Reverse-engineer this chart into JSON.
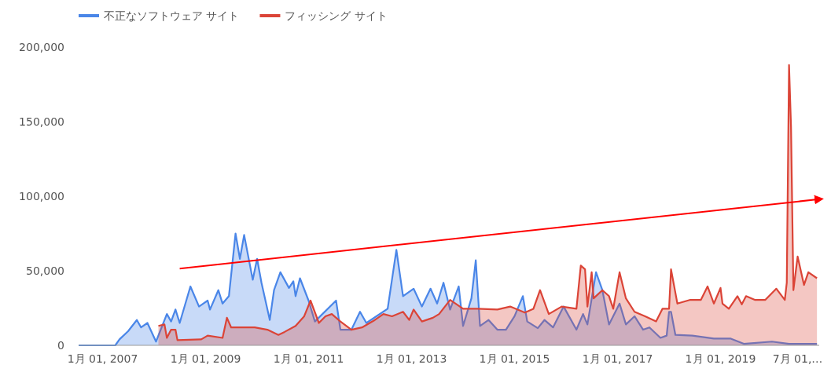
{
  "chart_data": {
    "type": "area",
    "legend": "top left",
    "grid": false,
    "xlim": [
      "2006-07-15",
      "2020-12-01"
    ],
    "xticks": [
      {
        "value": "2007-01-01",
        "label": "1月 01, 2007"
      },
      {
        "value": "2009-01-01",
        "label": "1月 01, 2009"
      },
      {
        "value": "2011-01-01",
        "label": "1月 01, 2011"
      },
      {
        "value": "2013-01-01",
        "label": "1月 01, 2013"
      },
      {
        "value": "2015-01-01",
        "label": "1月 01, 2015"
      },
      {
        "value": "2017-01-01",
        "label": "1月 01, 2017"
      },
      {
        "value": "2019-01-01",
        "label": "1月 01, 2019"
      },
      {
        "value": "2020-07-01",
        "label": "7月 01,…"
      }
    ],
    "ylim": [
      0,
      200000
    ],
    "yticks": [
      {
        "value": 0,
        "label": "0"
      },
      {
        "value": 50000,
        "label": "50,000"
      },
      {
        "value": 100000,
        "label": "100,000"
      },
      {
        "value": 150000,
        "label": "150,000"
      },
      {
        "value": 200000,
        "label": "200,000"
      }
    ],
    "series": [
      {
        "name": "不正なソフトウェア サイト",
        "color": "#4a86e8",
        "x": [
          "2006-07-15",
          "2007-04-01",
          "2007-05-01",
          "2007-07-01",
          "2007-09-01",
          "2007-10-01",
          "2007-11-15",
          "2008-01-15",
          "2008-04-01",
          "2008-05-01",
          "2008-06-01",
          "2008-07-01",
          "2008-09-15",
          "2008-11-15",
          "2009-01-15",
          "2009-02-01",
          "2009-04-01",
          "2009-05-01",
          "2009-06-15",
          "2009-08-01",
          "2009-09-01",
          "2009-10-01",
          "2009-12-01",
          "2010-01-01",
          "2010-02-01",
          "2010-04-01",
          "2010-05-01",
          "2010-06-15",
          "2010-08-15",
          "2010-09-15",
          "2010-10-01",
          "2010-11-01",
          "2011-01-01",
          "2011-02-15",
          "2011-07-15",
          "2011-08-15",
          "2011-11-01",
          "2012-01-01",
          "2012-02-15",
          "2012-07-15",
          "2012-09-15",
          "2012-11-01",
          "2013-01-15",
          "2013-03-15",
          "2013-05-15",
          "2013-07-01",
          "2013-08-15",
          "2013-10-01",
          "2013-12-01",
          "2014-01-01",
          "2014-03-01",
          "2014-04-01",
          "2014-05-01",
          "2014-07-01",
          "2014-09-01",
          "2014-11-01",
          "2015-01-01",
          "2015-03-01",
          "2015-04-01",
          "2015-06-15",
          "2015-08-01",
          "2015-10-01",
          "2015-12-15",
          "2016-03-15",
          "2016-05-01",
          "2016-06-01",
          "2016-08-01",
          "2016-09-15",
          "2016-11-01",
          "2017-01-15",
          "2017-03-01",
          "2017-05-01",
          "2017-07-01",
          "2017-08-15",
          "2017-11-01",
          "2017-12-15",
          "2018-01-01",
          "2018-01-15",
          "2018-02-15",
          "2018-06-15",
          "2018-11-15",
          "2019-03-15",
          "2019-06-15",
          "2020-01-01",
          "2020-05-01",
          "2020-11-15"
        ],
        "values": [
          0,
          0,
          4000,
          9500,
          17000,
          12000,
          15000,
          2500,
          21000,
          16000,
          24000,
          15000,
          39500,
          26000,
          30000,
          24000,
          37000,
          28000,
          33000,
          75000,
          58000,
          74000,
          44000,
          58000,
          42000,
          17000,
          37000,
          49000,
          38500,
          43000,
          33000,
          45000,
          30000,
          16000,
          30000,
          10500,
          10500,
          22500,
          15000,
          24500,
          64000,
          33000,
          38000,
          26000,
          38000,
          28000,
          42000,
          24000,
          39500,
          13000,
          31500,
          57000,
          13000,
          17000,
          10500,
          10500,
          19500,
          33000,
          16000,
          11500,
          17000,
          12000,
          26000,
          10500,
          21000,
          14000,
          49000,
          37000,
          14000,
          28000,
          14000,
          19500,
          10500,
          12000,
          5000,
          6500,
          22500,
          22500,
          7000,
          6500,
          4500,
          4500,
          1000,
          2500,
          1000,
          1000
        ]
      },
      {
        "name": "フィッシング サイト",
        "color": "#db4437",
        "x": [
          "2008-02-01",
          "2008-03-15",
          "2008-04-01",
          "2008-05-01",
          "2008-06-01",
          "2008-06-15",
          "2008-12-01",
          "2009-01-15",
          "2009-05-01",
          "2009-06-01",
          "2009-07-01",
          "2009-12-15",
          "2010-03-15",
          "2010-06-01",
          "2010-07-15",
          "2010-10-01",
          "2010-12-01",
          "2011-01-15",
          "2011-03-15",
          "2011-05-01",
          "2011-06-15",
          "2011-08-15",
          "2011-11-01",
          "2012-01-15",
          "2012-04-15",
          "2012-06-15",
          "2012-08-15",
          "2012-11-01",
          "2012-12-15",
          "2013-01-15",
          "2013-03-15",
          "2013-06-01",
          "2013-07-15",
          "2013-10-01",
          "2014-01-01",
          "2014-04-15",
          "2014-09-01",
          "2014-12-01",
          "2015-03-15",
          "2015-05-15",
          "2015-07-01",
          "2015-09-01",
          "2015-12-01",
          "2016-03-15",
          "2016-04-15",
          "2016-05-15",
          "2016-06-01",
          "2016-07-01",
          "2016-07-15",
          "2016-09-15",
          "2016-11-01",
          "2016-12-01",
          "2017-01-15",
          "2017-03-01",
          "2017-05-01",
          "2017-07-15",
          "2017-10-01",
          "2017-11-15",
          "2018-01-01",
          "2018-01-15",
          "2018-03-01",
          "2018-06-01",
          "2018-08-15",
          "2018-10-01",
          "2018-11-15",
          "2019-01-01",
          "2019-01-15",
          "2019-03-01",
          "2019-05-01",
          "2019-06-01",
          "2019-07-01",
          "2019-09-01",
          "2019-11-15",
          "2020-02-01",
          "2020-04-01",
          "2020-04-15",
          "2020-05-01",
          "2020-05-15",
          "2020-06-01",
          "2020-07-01",
          "2020-08-15",
          "2020-09-15",
          "2020-11-15"
        ],
        "values": [
          13000,
          14000,
          5000,
          10500,
          10500,
          3500,
          4000,
          6500,
          5000,
          18500,
          12000,
          12000,
          10500,
          7000,
          9000,
          13000,
          19500,
          30000,
          15000,
          19500,
          21000,
          16000,
          10500,
          12000,
          17000,
          21000,
          19500,
          22500,
          17000,
          24000,
          16000,
          18500,
          21000,
          30500,
          24500,
          24500,
          24000,
          26000,
          22000,
          24500,
          37000,
          21000,
          26000,
          24500,
          53500,
          51000,
          26000,
          49000,
          31500,
          37000,
          33000,
          24500,
          49000,
          31500,
          22500,
          19500,
          16000,
          24500,
          24500,
          51000,
          28000,
          30500,
          30500,
          39500,
          28000,
          38500,
          28000,
          24500,
          33000,
          27500,
          33000,
          30500,
          30500,
          38000,
          30500,
          42000,
          188000,
          147000,
          37000,
          59500,
          40500,
          49000,
          45000
        ]
      },
      {
        "type": "line",
        "color": "#ff0000",
        "x": [
          "2008-07-01",
          "2020-12-01"
        ],
        "values": [
          51500,
          98000
        ]
      }
    ]
  }
}
